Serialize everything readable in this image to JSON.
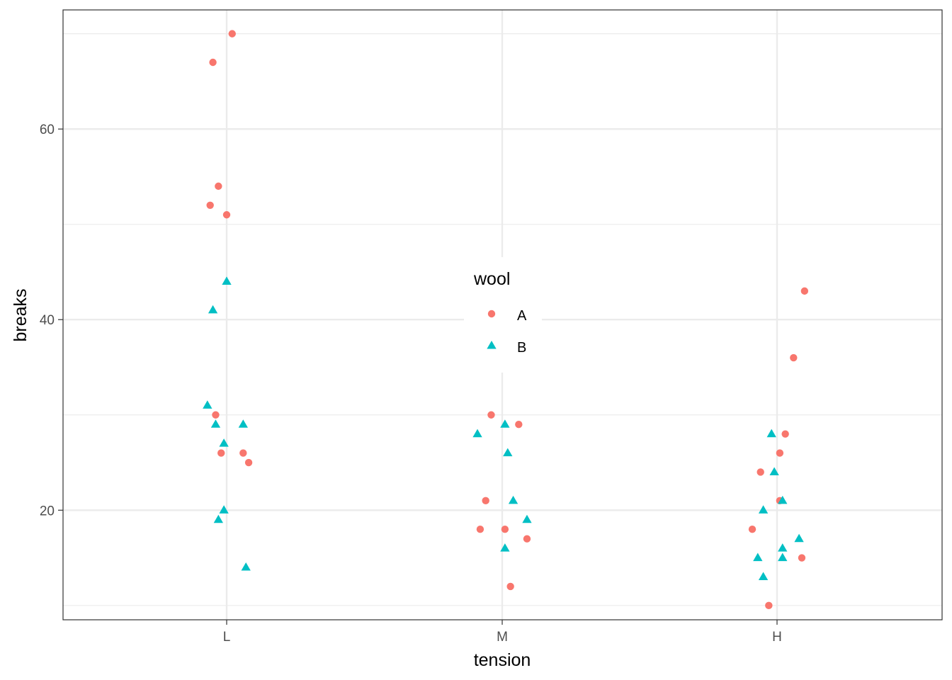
{
  "chart_data": {
    "type": "scatter",
    "title": "",
    "xlabel": "tension",
    "ylabel": "breaks",
    "categories": [
      "L",
      "M",
      "H"
    ],
    "ylim": [
      8.5,
      72.5
    ],
    "yticks": [
      20,
      40,
      60
    ],
    "grid": true,
    "legend": {
      "title": "wool",
      "placement": "center",
      "entries": [
        {
          "label": "A",
          "shape": "circle",
          "color": "#F8766D"
        },
        {
          "label": "B",
          "shape": "triangle",
          "color": "#00BFC4"
        }
      ]
    },
    "series": [
      {
        "name": "A",
        "shape": "circle",
        "color": "#F8766D",
        "points": [
          {
            "x": "L",
            "jitter": 0.02,
            "y": 70
          },
          {
            "x": "L",
            "jitter": -0.05,
            "y": 67
          },
          {
            "x": "L",
            "jitter": -0.03,
            "y": 54
          },
          {
            "x": "L",
            "jitter": -0.06,
            "y": 52
          },
          {
            "x": "L",
            "jitter": 0.0,
            "y": 51
          },
          {
            "x": "L",
            "jitter": -0.04,
            "y": 30
          },
          {
            "x": "L",
            "jitter": -0.02,
            "y": 26
          },
          {
            "x": "L",
            "jitter": 0.06,
            "y": 26
          },
          {
            "x": "L",
            "jitter": 0.08,
            "y": 25
          },
          {
            "x": "M",
            "jitter": -0.04,
            "y": 30
          },
          {
            "x": "M",
            "jitter": 0.06,
            "y": 29
          },
          {
            "x": "M",
            "jitter": -0.06,
            "y": 21
          },
          {
            "x": "M",
            "jitter": -0.08,
            "y": 18
          },
          {
            "x": "M",
            "jitter": 0.01,
            "y": 18
          },
          {
            "x": "M",
            "jitter": 0.09,
            "y": 17
          },
          {
            "x": "M",
            "jitter": 0.03,
            "y": 12
          },
          {
            "x": "H",
            "jitter": 0.1,
            "y": 43
          },
          {
            "x": "H",
            "jitter": 0.06,
            "y": 36
          },
          {
            "x": "H",
            "jitter": 0.03,
            "y": 28
          },
          {
            "x": "H",
            "jitter": 0.01,
            "y": 26
          },
          {
            "x": "H",
            "jitter": -0.06,
            "y": 24
          },
          {
            "x": "H",
            "jitter": 0.01,
            "y": 21
          },
          {
            "x": "H",
            "jitter": -0.09,
            "y": 18
          },
          {
            "x": "H",
            "jitter": 0.09,
            "y": 15
          },
          {
            "x": "H",
            "jitter": -0.03,
            "y": 10
          }
        ]
      },
      {
        "name": "B",
        "shape": "triangle",
        "color": "#00BFC4",
        "points": [
          {
            "x": "L",
            "jitter": 0.0,
            "y": 44
          },
          {
            "x": "L",
            "jitter": -0.05,
            "y": 41
          },
          {
            "x": "L",
            "jitter": -0.07,
            "y": 31
          },
          {
            "x": "L",
            "jitter": -0.04,
            "y": 29
          },
          {
            "x": "L",
            "jitter": 0.06,
            "y": 29
          },
          {
            "x": "L",
            "jitter": -0.01,
            "y": 27
          },
          {
            "x": "L",
            "jitter": -0.01,
            "y": 20
          },
          {
            "x": "L",
            "jitter": -0.03,
            "y": 19
          },
          {
            "x": "L",
            "jitter": 0.07,
            "y": 14
          },
          {
            "x": "M",
            "jitter": 0.01,
            "y": 29
          },
          {
            "x": "M",
            "jitter": -0.09,
            "y": 28
          },
          {
            "x": "M",
            "jitter": 0.02,
            "y": 26
          },
          {
            "x": "M",
            "jitter": 0.04,
            "y": 21
          },
          {
            "x": "M",
            "jitter": 0.09,
            "y": 19
          },
          {
            "x": "M",
            "jitter": 0.01,
            "y": 16
          },
          {
            "x": "H",
            "jitter": -0.02,
            "y": 28
          },
          {
            "x": "H",
            "jitter": -0.01,
            "y": 24
          },
          {
            "x": "H",
            "jitter": 0.02,
            "y": 21
          },
          {
            "x": "H",
            "jitter": -0.05,
            "y": 20
          },
          {
            "x": "H",
            "jitter": 0.08,
            "y": 17
          },
          {
            "x": "H",
            "jitter": 0.02,
            "y": 16
          },
          {
            "x": "H",
            "jitter": -0.07,
            "y": 15
          },
          {
            "x": "H",
            "jitter": 0.02,
            "y": 15
          },
          {
            "x": "H",
            "jitter": -0.05,
            "y": 13
          }
        ]
      }
    ]
  }
}
